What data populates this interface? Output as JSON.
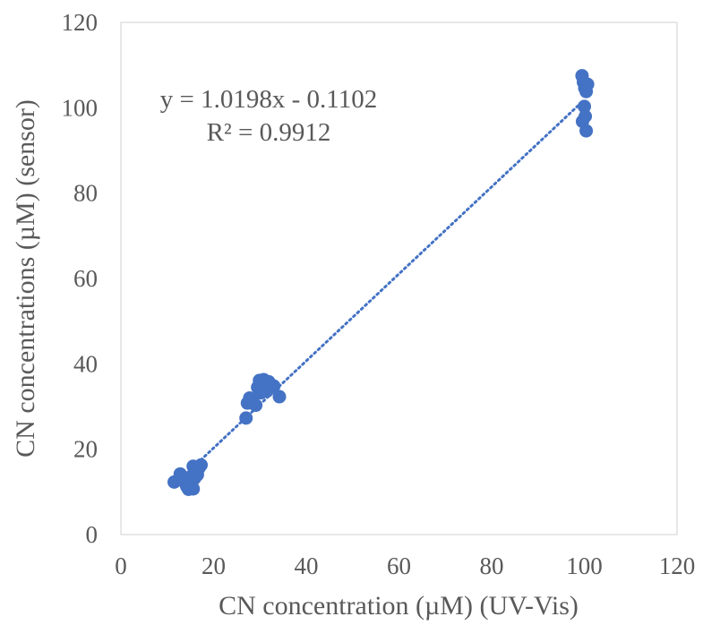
{
  "chart_data": {
    "type": "scatter",
    "title": "",
    "xlabel": "CN concentration (µM) (UV-Vis)",
    "ylabel": "CN concentrations (µM) (sensor)",
    "xlim": [
      0,
      120
    ],
    "ylim": [
      0,
      120
    ],
    "x_ticks": [
      "0",
      "20",
      "40",
      "60",
      "80",
      "100",
      "120"
    ],
    "y_ticks": [
      "0",
      "20",
      "40",
      "60",
      "80",
      "100",
      "120"
    ],
    "grid": false,
    "legend": "none",
    "colors": {
      "points": "#4472C4",
      "trendline": "#4472C4",
      "text": "#595959",
      "frame": "#D9D9D9"
    },
    "trendline": {
      "type": "linear",
      "slope": 1.0198,
      "intercept": -0.1102,
      "x_range": [
        13,
        100
      ],
      "equation": "y = 1.0198x - 0.1102",
      "r_squared": "R² = 0.9912"
    },
    "series": [
      {
        "points": [
          [
            11.5,
            12.3
          ],
          [
            12.8,
            14.2
          ],
          [
            13.4,
            12.6
          ],
          [
            14.2,
            11.3
          ],
          [
            14.6,
            10.6
          ],
          [
            15.0,
            13.5
          ],
          [
            15.3,
            11.4
          ],
          [
            15.6,
            10.7
          ],
          [
            15.6,
            16.0
          ],
          [
            15.9,
            13.2
          ],
          [
            16.2,
            15.1
          ],
          [
            16.5,
            14.0
          ],
          [
            16.8,
            15.5
          ],
          [
            17.3,
            16.3
          ],
          [
            14.0,
            13.0
          ],
          [
            27.0,
            27.3
          ],
          [
            27.3,
            30.8
          ],
          [
            27.8,
            32.0
          ],
          [
            28.4,
            31.6
          ],
          [
            29.1,
            30.3
          ],
          [
            29.5,
            34.5
          ],
          [
            29.9,
            36.1
          ],
          [
            30.2,
            33.2
          ],
          [
            30.5,
            35.4
          ],
          [
            30.8,
            36.3
          ],
          [
            31.1,
            34.3
          ],
          [
            31.5,
            33.6
          ],
          [
            31.9,
            35.8
          ],
          [
            32.4,
            35.0
          ],
          [
            33.0,
            34.8
          ],
          [
            34.2,
            32.3
          ],
          [
            99.5,
            107.5
          ],
          [
            99.8,
            106.0
          ],
          [
            100.1,
            104.6
          ],
          [
            100.4,
            103.8
          ],
          [
            100.7,
            105.5
          ],
          [
            100.0,
            100.3
          ],
          [
            100.2,
            98.0
          ],
          [
            99.6,
            96.8
          ],
          [
            100.4,
            94.6
          ]
        ]
      }
    ]
  }
}
